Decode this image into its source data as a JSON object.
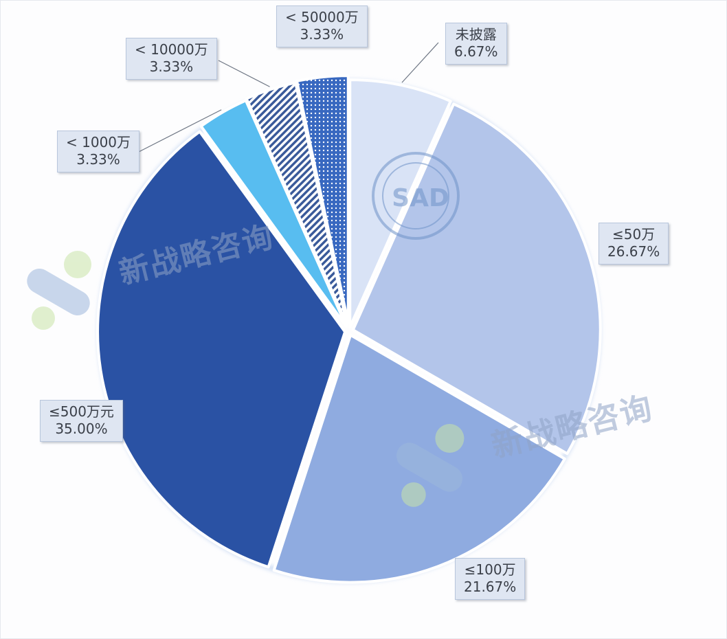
{
  "chart_data": {
    "type": "pie",
    "title": "",
    "slices": [
      {
        "label": "未披露",
        "percent_label": "6.67%",
        "value": 6.67,
        "color": "#d9e3f6",
        "pattern": "none"
      },
      {
        "label": "≤50万",
        "percent_label": "26.67%",
        "value": 26.67,
        "color": "#b3c5ea",
        "pattern": "none"
      },
      {
        "label": "≤100万",
        "percent_label": "21.67%",
        "value": 21.67,
        "color": "#8fabe0",
        "pattern": "none"
      },
      {
        "label": "≤500万元",
        "percent_label": "35.00%",
        "value": 35.0,
        "color": "#2a52a4",
        "pattern": "none"
      },
      {
        "label": "< 1000万",
        "percent_label": "3.33%",
        "value": 3.33,
        "color": "#58bdf0",
        "pattern": "none"
      },
      {
        "label": "< 10000万",
        "percent_label": "3.33%",
        "value": 3.33,
        "color": "#3a5a9a",
        "pattern": "stripes"
      },
      {
        "label": "< 50000万",
        "percent_label": "3.33%",
        "value": 3.33,
        "color": "#3868c0",
        "pattern": "dots"
      }
    ]
  },
  "watermark": {
    "text": "新战略咨询",
    "seal_text": "SAD"
  }
}
